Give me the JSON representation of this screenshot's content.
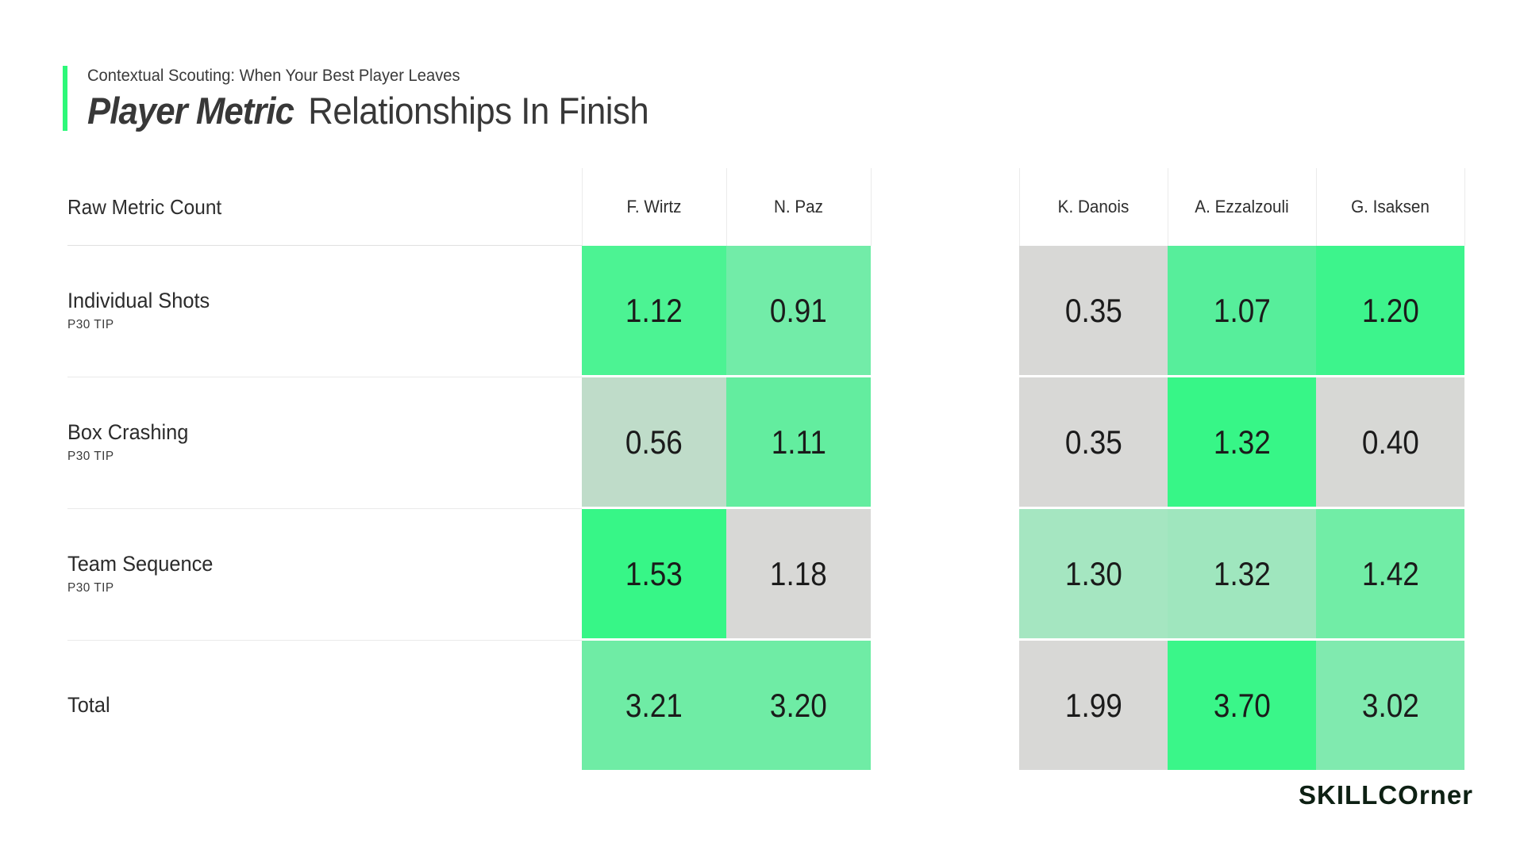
{
  "page": {
    "background": "#FFFFFF"
  },
  "header": {
    "eyebrow": "Contextual Scouting: When Your Best Player Leaves",
    "title_emphasis": "Player Metric",
    "title_rest": " Relationships In Finish",
    "accent_color": "#2DF879"
  },
  "table": {
    "corner_label": "Raw Metric Count",
    "columns": [
      "F. Wirtz",
      "N. Paz",
      "K. Danois",
      "A. Ezzalzouli",
      "G. Isaksen"
    ],
    "rows": [
      {
        "label": "Individual Shots",
        "sublabel": "P30 TIP",
        "cells": [
          {
            "value": "1.12",
            "color": "#4CF393"
          },
          {
            "value": "0.91",
            "color": "#72ECA8"
          },
          {
            "value": "0.35",
            "color": "#D8D8D6"
          },
          {
            "value": "1.07",
            "color": "#57EE9B"
          },
          {
            "value": "1.20",
            "color": "#3DF48C"
          }
        ]
      },
      {
        "label": "Box Crashing",
        "sublabel": "P30 TIP",
        "cells": [
          {
            "value": "0.56",
            "color": "#BFDCC9"
          },
          {
            "value": "1.11",
            "color": "#63ED9F"
          },
          {
            "value": "0.35",
            "color": "#D8D8D6"
          },
          {
            "value": "1.32",
            "color": "#37F687"
          },
          {
            "value": "0.40",
            "color": "#D7D8D5"
          }
        ]
      },
      {
        "label": "Team Sequence",
        "sublabel": "P30 TIP",
        "cells": [
          {
            "value": "1.53",
            "color": "#37F687"
          },
          {
            "value": "1.18",
            "color": "#D8D8D6"
          },
          {
            "value": "1.30",
            "color": "#A5E6C1"
          },
          {
            "value": "1.32",
            "color": "#9FE6BE"
          },
          {
            "value": "1.42",
            "color": "#71EDA6"
          }
        ]
      },
      {
        "label": "Total",
        "sublabel": "",
        "cells": [
          {
            "value": "3.21",
            "color": "#6FECA5"
          },
          {
            "value": "3.20",
            "color": "#6FECA5"
          },
          {
            "value": "1.99",
            "color": "#D8D8D6"
          },
          {
            "value": "3.70",
            "color": "#3AF689"
          },
          {
            "value": "3.02",
            "color": "#80EAAF"
          }
        ]
      }
    ]
  },
  "footer": {
    "logo_caps": "SKILLCO",
    "logo_lower": "rner",
    "logo_color": "#0D2013"
  },
  "chart_data": {
    "type": "heatmap",
    "title": "Player Metric Relationships In Finish",
    "subtitle": "Contextual Scouting: When Your Best Player Leaves",
    "row_header": "Raw Metric Count",
    "rows": [
      "Individual Shots (P30 TIP)",
      "Box Crashing (P30 TIP)",
      "Team Sequence (P30 TIP)",
      "Total"
    ],
    "columns": [
      "F. Wirtz",
      "N. Paz",
      "K. Danois",
      "A. Ezzalzouli",
      "G. Isaksen"
    ],
    "values": [
      [
        1.12,
        0.91,
        0.35,
        1.07,
        1.2
      ],
      [
        0.56,
        1.11,
        0.35,
        1.32,
        0.4
      ],
      [
        1.53,
        1.18,
        1.3,
        1.32,
        1.42
      ],
      [
        3.21,
        3.2,
        1.99,
        3.7,
        3.02
      ]
    ],
    "color_scale": "gray (low) to pale green to bright green (high)",
    "legend": "none"
  }
}
